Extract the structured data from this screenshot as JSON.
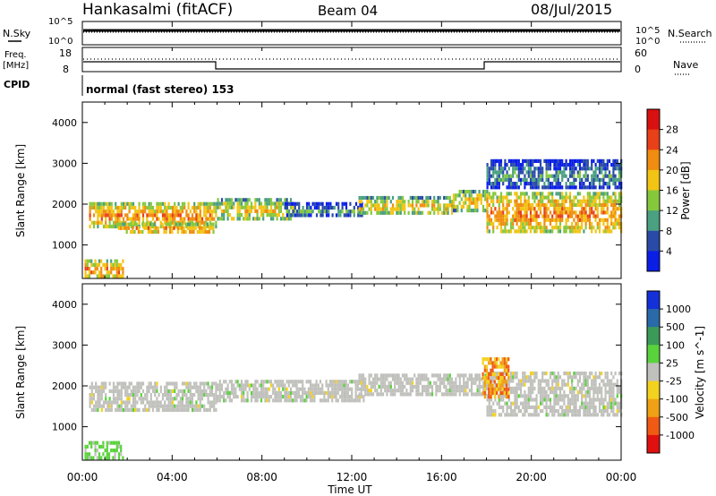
{
  "header": {
    "station": "Hankasalmi (fitACF)",
    "beam": "Beam 04",
    "date": "08/Jul/2015"
  },
  "strip_labels": {
    "nsky": "N.Sky",
    "nsearch": "N.Search",
    "freq_line1": "Freq.",
    "freq_line2": "[MHz]",
    "nave": "Nave",
    "cpid": "CPID",
    "cpid_value": "normal (fast stereo) 153"
  },
  "noise_axis": {
    "left_top": "10^5",
    "left_bottom": "10^0",
    "right_top": "10^5",
    "right_bottom": "10^0"
  },
  "freq_axis": {
    "left_ticks": [
      "18",
      "8"
    ],
    "right_ticks": [
      "60",
      "0"
    ]
  },
  "x_axis": {
    "label": "Time UT",
    "ticks": [
      "00:00",
      "04:00",
      "08:00",
      "12:00",
      "16:00",
      "20:00",
      "00:00"
    ]
  },
  "chart_data": [
    {
      "type": "heatmap",
      "panel": "power",
      "ylabel": "Slant Range [km]",
      "xlabel": "",
      "y_ticks": [
        "1000",
        "2000",
        "3000",
        "4000"
      ],
      "ylim": [
        180,
        4500
      ],
      "xlim_hours": [
        0,
        24
      ],
      "colorbar": {
        "label": "Power [dB]",
        "ticks": [
          "4",
          "8",
          "12",
          "16",
          "20",
          "24",
          "28"
        ],
        "colors": [
          "#0a1ee6",
          "#2a4aa8",
          "#4aa080",
          "#86c83c",
          "#f2c414",
          "#f08c10",
          "#e84018",
          "#d81010"
        ]
      },
      "bands": [
        {
          "t0": 0.3,
          "t1": 6.0,
          "r0": 1450,
          "r1": 2050,
          "level": "high"
        },
        {
          "t0": 1.5,
          "t1": 5.8,
          "r0": 1300,
          "r1": 1550,
          "level": "high"
        },
        {
          "t0": 0.1,
          "t1": 1.8,
          "r0": 200,
          "r1": 650,
          "level": "high"
        },
        {
          "t0": 6.0,
          "t1": 9.5,
          "r0": 1600,
          "r1": 2150,
          "level": "medium"
        },
        {
          "t0": 9.0,
          "t1": 12.5,
          "r0": 1700,
          "r1": 2050,
          "level": "low"
        },
        {
          "t0": 12.3,
          "t1": 16.5,
          "r0": 1750,
          "r1": 2200,
          "level": "medium"
        },
        {
          "t0": 16.5,
          "t1": 18.0,
          "r0": 1850,
          "r1": 2350,
          "level": "medium"
        },
        {
          "t0": 18.0,
          "t1": 24.0,
          "r0": 1300,
          "r1": 2300,
          "level": "high"
        },
        {
          "t0": 18.0,
          "t1": 24.0,
          "r0": 2400,
          "r1": 3100,
          "level": "low"
        }
      ]
    },
    {
      "type": "heatmap",
      "panel": "velocity",
      "ylabel": "Slant Range [km]",
      "xlabel": "",
      "y_ticks": [
        "1000",
        "2000",
        "3000",
        "4000"
      ],
      "ylim": [
        180,
        4500
      ],
      "xlim_hours": [
        0,
        24
      ],
      "colorbar": {
        "label": "Velocity [m s^-1]",
        "ticks": [
          "1000",
          "500",
          "100",
          "25",
          "-25",
          "-100",
          "-500",
          "-1000"
        ],
        "colors": [
          "#1430d8",
          "#2a6aa8",
          "#3c9a58",
          "#5ad23c",
          "#c0c0bc",
          "#f2d21e",
          "#f0a014",
          "#f05a14",
          "#e01010"
        ]
      },
      "bands": [
        {
          "t0": 0.3,
          "t1": 6.0,
          "r0": 1400,
          "r1": 2100,
          "level": "ground"
        },
        {
          "t0": 0.1,
          "t1": 1.8,
          "r0": 200,
          "r1": 650,
          "level": "positive"
        },
        {
          "t0": 6.0,
          "t1": 12.5,
          "r0": 1650,
          "r1": 2150,
          "level": "ground"
        },
        {
          "t0": 12.3,
          "t1": 18.0,
          "r0": 1750,
          "r1": 2300,
          "level": "ground"
        },
        {
          "t0": 18.0,
          "t1": 24.0,
          "r0": 1300,
          "r1": 2350,
          "level": "ground"
        },
        {
          "t0": 17.8,
          "t1": 19.0,
          "r0": 1700,
          "r1": 2700,
          "level": "negative"
        }
      ]
    }
  ]
}
